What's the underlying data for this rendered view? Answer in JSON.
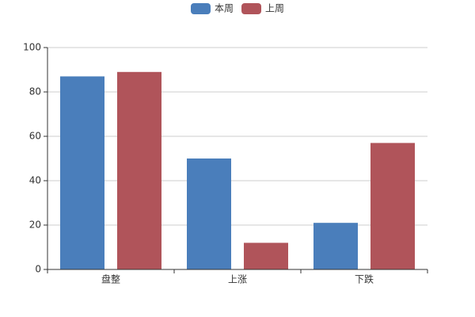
{
  "chart_data": {
    "type": "bar",
    "categories": [
      "盘整",
      "上涨",
      "下跌"
    ],
    "series": [
      {
        "name": "本周",
        "color": "#4a7ebb",
        "values": [
          87,
          50,
          21
        ]
      },
      {
        "name": "上周",
        "color": "#b0545a",
        "values": [
          89,
          12,
          57
        ]
      }
    ],
    "ylim": [
      0,
      100
    ],
    "yticks": [
      0,
      20,
      40,
      60,
      80,
      100
    ],
    "grid": true,
    "legend": "top"
  }
}
